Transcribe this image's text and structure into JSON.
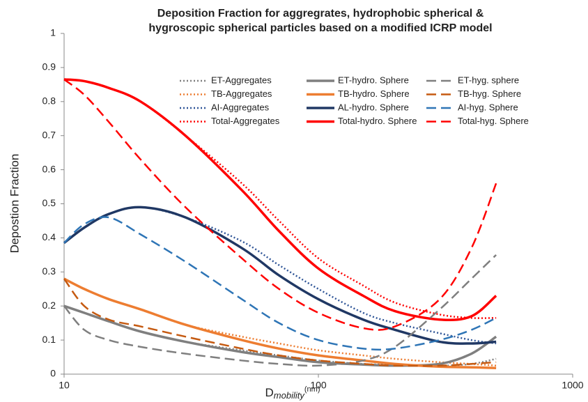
{
  "chart_data": {
    "type": "line",
    "title": [
      "Deposition Fraction for aggregrates, hydrophobic spherical &",
      "hygroscopic spherical particles based on a modified ICRP model"
    ],
    "y_label": "Depostion Fraction",
    "x_label": {
      "base": "D",
      "sub": "mobility",
      "unit": "(nm)"
    },
    "x_scale": "log",
    "x": [
      10,
      12,
      15,
      20,
      30,
      50,
      70,
      100,
      150,
      200,
      300,
      400,
      500
    ],
    "xlim": [
      10,
      1000
    ],
    "xticks": [
      10,
      100,
      1000
    ],
    "ylim": [
      0,
      1
    ],
    "yticks": [
      0,
      0.1,
      0.2,
      0.3,
      0.4,
      0.5,
      0.6,
      0.7,
      0.8,
      0.9,
      1
    ],
    "grid": false,
    "series": [
      {
        "name": "ET-Aggregates",
        "color": "#7f7f7f",
        "dash": "dotted",
        "values": [
          0.2,
          0.18,
          0.155,
          0.125,
          0.095,
          0.07,
          0.055,
          0.04,
          0.03,
          0.028,
          0.025,
          0.03,
          0.045
        ]
      },
      {
        "name": "TB-Aggregates",
        "color": "#ed7d31",
        "dash": "dotted",
        "values": [
          0.28,
          0.25,
          0.22,
          0.19,
          0.145,
          0.11,
          0.09,
          0.07,
          0.055,
          0.045,
          0.035,
          0.03,
          0.025
        ]
      },
      {
        "name": "AI-Aggregates",
        "color": "#2f5597",
        "dash": "dotted",
        "values": [
          0.385,
          0.43,
          0.47,
          0.49,
          0.46,
          0.39,
          0.32,
          0.25,
          0.18,
          0.15,
          0.12,
          0.1,
          0.09
        ]
      },
      {
        "name": "Total-Aggregates",
        "color": "#ff0000",
        "dash": "dotted",
        "values": [
          0.865,
          0.86,
          0.84,
          0.8,
          0.7,
          0.56,
          0.45,
          0.34,
          0.26,
          0.21,
          0.175,
          0.165,
          0.165
        ]
      },
      {
        "name": "ET-hydro. Sphere",
        "color": "#7f7f7f",
        "dash": "solid",
        "values": [
          0.2,
          0.18,
          0.155,
          0.125,
          0.095,
          0.065,
          0.05,
          0.035,
          0.028,
          0.025,
          0.03,
          0.06,
          0.11
        ]
      },
      {
        "name": "TB-hydro. Sphere",
        "color": "#ed7d31",
        "dash": "solid",
        "values": [
          0.28,
          0.25,
          0.22,
          0.19,
          0.145,
          0.1,
          0.075,
          0.055,
          0.04,
          0.03,
          0.022,
          0.02,
          0.018
        ]
      },
      {
        "name": "AL-hydro. Sphere",
        "color": "#203864",
        "dash": "solid",
        "values": [
          0.385,
          0.43,
          0.47,
          0.49,
          0.46,
          0.37,
          0.29,
          0.22,
          0.16,
          0.13,
          0.095,
          0.09,
          0.095
        ]
      },
      {
        "name": "Total-hydro. Sphere",
        "color": "#ff0000",
        "dash": "solid",
        "values": [
          0.865,
          0.86,
          0.84,
          0.8,
          0.7,
          0.54,
          0.42,
          0.31,
          0.23,
          0.185,
          0.16,
          0.17,
          0.23
        ]
      },
      {
        "name": "ET-hyg. sphere",
        "color": "#7f7f7f",
        "dash": "dashed",
        "values": [
          0.2,
          0.13,
          0.1,
          0.08,
          0.06,
          0.04,
          0.03,
          0.025,
          0.04,
          0.08,
          0.19,
          0.28,
          0.35
        ]
      },
      {
        "name": "TB-hyg. Sphere",
        "color": "#c55a11",
        "dash": "dashed",
        "values": [
          0.28,
          0.2,
          0.16,
          0.14,
          0.11,
          0.075,
          0.055,
          0.04,
          0.03,
          0.025,
          0.025,
          0.03,
          0.035
        ]
      },
      {
        "name": "AI-hyg. Sphere",
        "color": "#2e75b6",
        "dash": "dashed",
        "values": [
          0.385,
          0.44,
          0.46,
          0.41,
          0.33,
          0.22,
          0.15,
          0.1,
          0.075,
          0.075,
          0.1,
          0.13,
          0.165
        ]
      },
      {
        "name": "Total-hyg. Sphere",
        "color": "#ff0000",
        "dash": "dashed",
        "values": [
          0.865,
          0.82,
          0.74,
          0.63,
          0.49,
          0.34,
          0.25,
          0.18,
          0.135,
          0.14,
          0.22,
          0.37,
          0.56
        ]
      }
    ]
  }
}
